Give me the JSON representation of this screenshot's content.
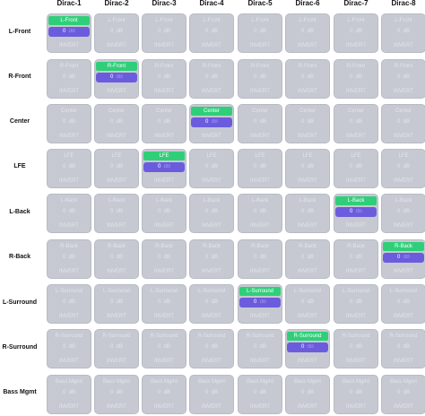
{
  "columns": [
    "Dirac-1",
    "Dirac-2",
    "Dirac-3",
    "Dirac-4",
    "Dirac-5",
    "Dirac-6",
    "Dirac-7",
    "Dirac-8"
  ],
  "rows": [
    {
      "label": "L-Front",
      "cell_label": "L-Front",
      "active_col": 0
    },
    {
      "label": "R-Front",
      "cell_label": "R-Front",
      "active_col": 1
    },
    {
      "label": "Center",
      "cell_label": "Center",
      "active_col": 3
    },
    {
      "label": "LFE",
      "cell_label": "LFE",
      "active_col": 2
    },
    {
      "label": "L-Back",
      "cell_label": "L-Back",
      "active_col": 6
    },
    {
      "label": "R-Back",
      "cell_label": "R-Back",
      "active_col": 7
    },
    {
      "label": "L-Surround",
      "cell_label": "L-Surround",
      "active_col": 4
    },
    {
      "label": "R-Surround",
      "cell_label": "R-Surround",
      "active_col": 5
    },
    {
      "label": "Bass Mgmt",
      "cell_label": "Bass Mgmt",
      "active_col": null
    }
  ],
  "cell_value": "0",
  "cell_db": "dB",
  "invert_label": "INVERT",
  "colors": {
    "active_label_bg": "#2fcf79",
    "active_value_bg": "#6b5cde",
    "cell_bg": "#c6c9d1",
    "inactive_text": "#e3e5ea"
  }
}
